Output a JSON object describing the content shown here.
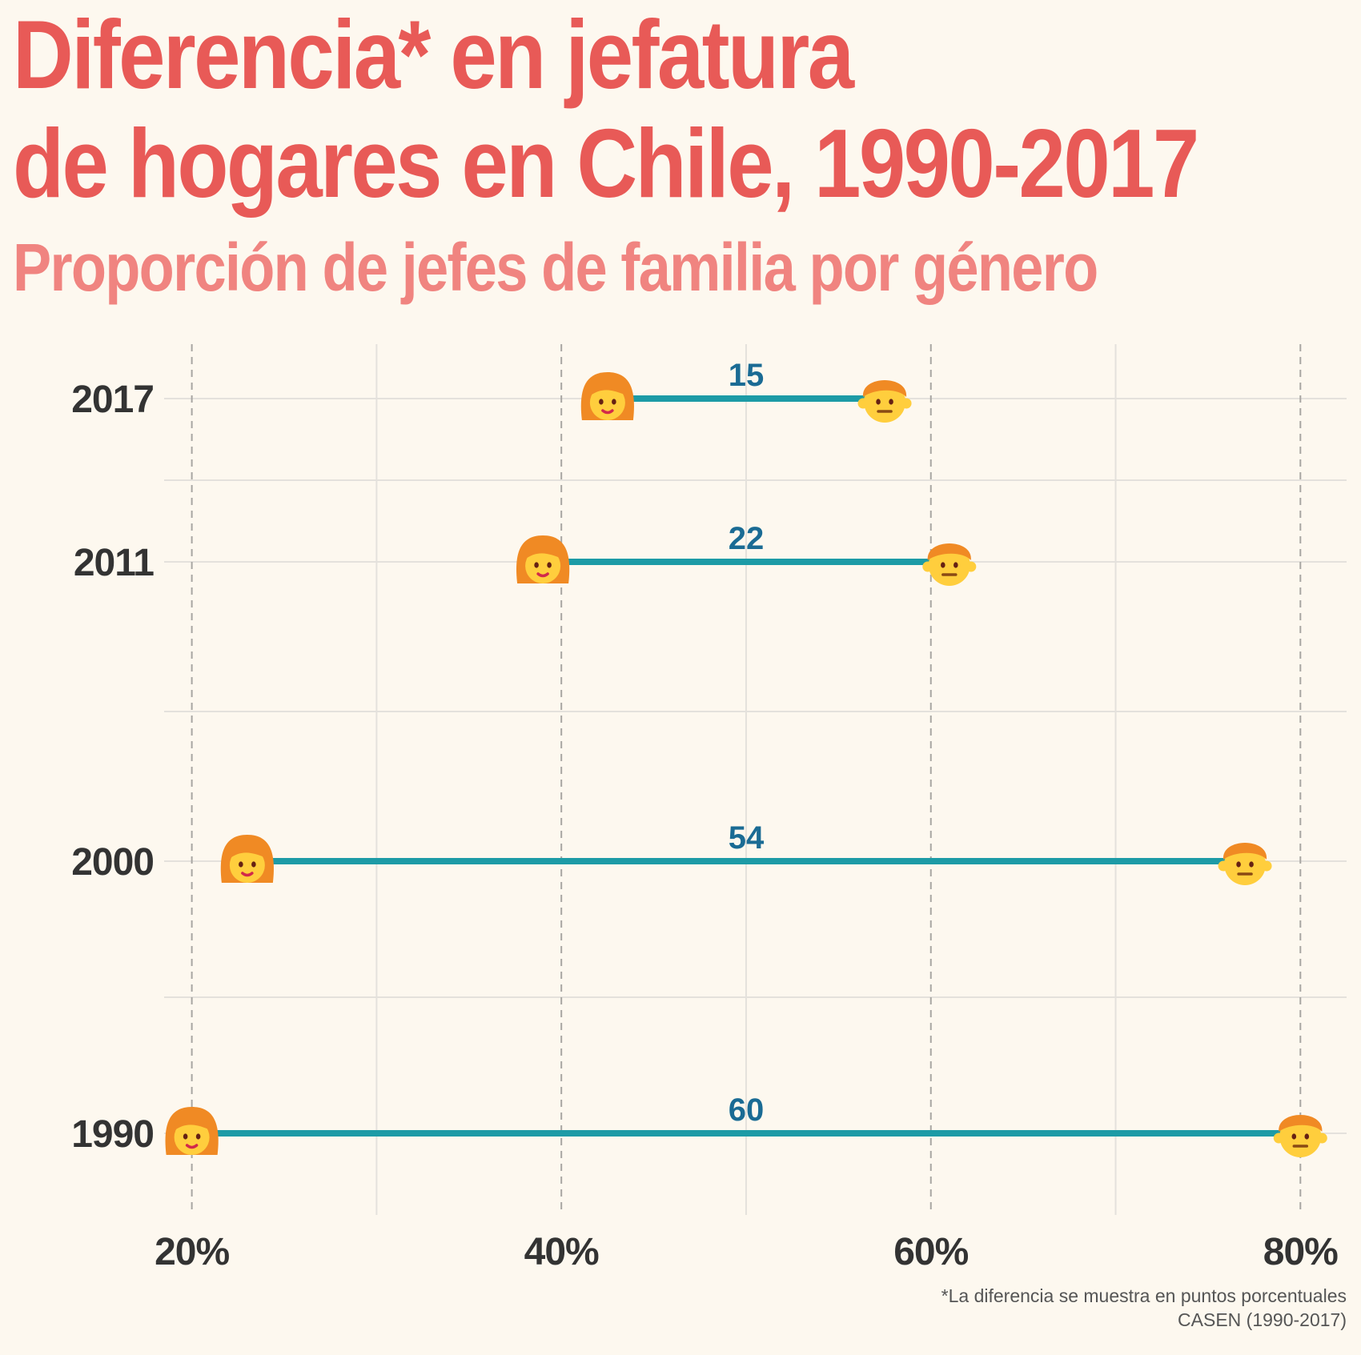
{
  "header": {
    "title_line1": "Diferencia* en jefatura",
    "title_line2": "de hogares en Chile, 1990-2017",
    "subtitle": "Proporción de jefes de familia por género"
  },
  "footer": {
    "note": "*La diferencia se muestra en puntos porcentuales",
    "source": "CASEN (1990-2017)"
  },
  "colors": {
    "title": "#e85a57",
    "subtitle": "#f08480",
    "segment": "#1d9ba6",
    "difference_label": "#1a6b94",
    "axis_text": "#333333"
  },
  "icons": {
    "women": "woman-face-icon",
    "men": "man-face-icon"
  },
  "chart_data": {
    "type": "dumbbell",
    "y_axis": {
      "type": "numeric",
      "range": [
        1987,
        2019
      ],
      "tick_labels": [
        "2017",
        "2011",
        "2000",
        "1990"
      ]
    },
    "x_axis": {
      "range": [
        18.5,
        82.5
      ],
      "ticks": [
        20,
        40,
        60,
        80
      ],
      "tick_labels": [
        "20%",
        "40%",
        "60%",
        "80%"
      ],
      "dashed_major_gridlines": true
    },
    "rows": [
      {
        "year": 2017,
        "year_label": "2017",
        "women": 42.5,
        "men": 57.5,
        "difference": 15,
        "difference_label": "15"
      },
      {
        "year": 2011,
        "year_label": "2011",
        "women": 39,
        "men": 61,
        "difference": 22,
        "difference_label": "22"
      },
      {
        "year": 2000,
        "year_label": "2000",
        "women": 23,
        "men": 77,
        "difference": 54,
        "difference_label": "54"
      },
      {
        "year": 1990,
        "year_label": "1990",
        "women": 20,
        "men": 80,
        "difference": 60,
        "difference_label": "60"
      }
    ],
    "minor_gridlines": {
      "x": [
        30,
        50,
        70
      ],
      "y": [
        1995,
        2005.5,
        2014
      ]
    }
  }
}
